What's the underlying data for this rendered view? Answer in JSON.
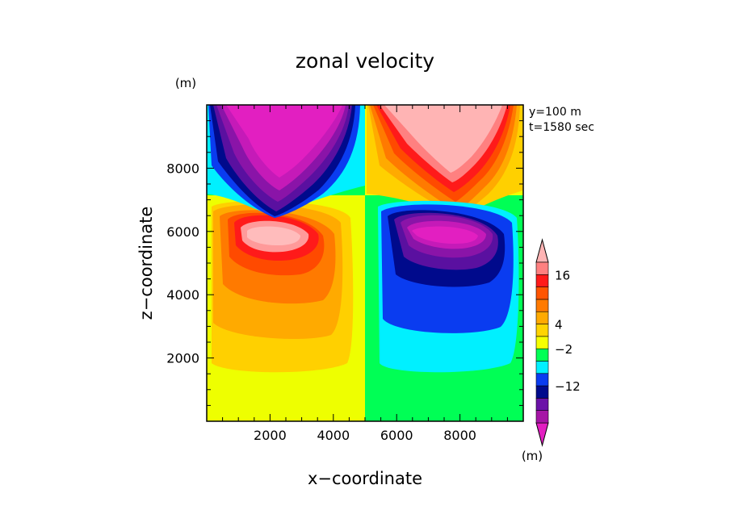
{
  "chart_data": {
    "type": "heatmap",
    "title": "zonal velocity",
    "xlabel": "x−coordinate",
    "ylabel": "z−coordinate",
    "x_unit": "(m)",
    "y_unit": "(m)",
    "annotations": [
      "y=100 m",
      "t=1580 sec"
    ],
    "xlim": [
      0,
      10000
    ],
    "ylim": [
      0,
      10000
    ],
    "x_ticks": [
      2000,
      4000,
      6000,
      8000
    ],
    "y_ticks": [
      2000,
      4000,
      6000,
      8000
    ],
    "x_tick_labels": [
      "2000",
      "4000",
      "6000",
      "8000"
    ],
    "y_tick_labels": [
      "2000",
      "4000",
      "6000",
      "8000"
    ],
    "colorbar": {
      "colors_bottom_to_top": [
        "#e21fc1",
        "#a615a6",
        "#6b12a8",
        "#000a8c",
        "#0a3cf0",
        "#00f0ff",
        "#00ff55",
        "#f5ff00",
        "#ffd400",
        "#ffaa00",
        "#ff7a00",
        "#ff5500",
        "#ff1a1a",
        "#ff8080",
        "#ffb4b4"
      ],
      "labels": [
        "16",
        "4",
        "−2",
        "−12"
      ]
    },
    "legend": "right colorbar"
  }
}
